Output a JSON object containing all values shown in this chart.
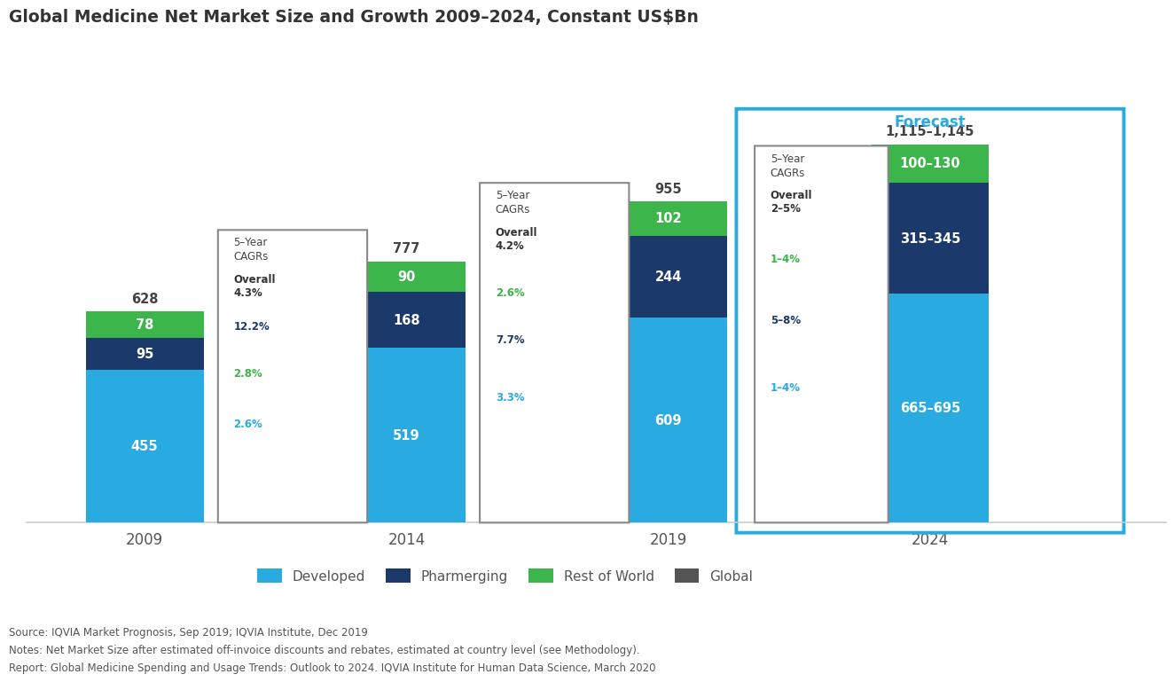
{
  "title": "Global Medicine Net Market Size and Growth 2009–2024, Constant US$Bn",
  "years": [
    "2009",
    "2014",
    "2019",
    "2024"
  ],
  "x_positions": [
    0,
    1,
    2,
    3
  ],
  "developed": [
    455,
    519,
    609,
    680
  ],
  "pharmerging": [
    95,
    168,
    244,
    330
  ],
  "rest_of_world": [
    78,
    90,
    102,
    115
  ],
  "totals": [
    "628",
    "777",
    "955",
    "1,115–1,145"
  ],
  "developed_labels": [
    "455",
    "519",
    "609",
    "665–695"
  ],
  "pharmerging_labels": [
    "95",
    "168",
    "244",
    "315–345"
  ],
  "row_labels": [
    "78",
    "90",
    "102",
    "100–130"
  ],
  "color_developed": "#29ABE2",
  "color_pharmerging": "#1B3A6B",
  "color_row": "#3CB54A",
  "color_forecast_border": "#29ABE2",
  "color_cagr_box_border": "#777777",
  "bar_width": 0.45,
  "legend_labels": [
    "Developed",
    "Pharmerging",
    "Rest of World",
    "Global"
  ],
  "legend_colors": [
    "#29ABE2",
    "#1B3A6B",
    "#3CB54A",
    "#555555"
  ],
  "source_text": "Source: IQVIA Market Prognosis, Sep 2019; IQVIA Institute, Dec 2019\nNotes: Net Market Size after estimated off-invoice discounts and rebates, estimated at country level (see Methodology).\nReport: Global Medicine Spending and Usage Trends: Outlook to 2024. IQVIA Institute for Human Data Science, March 2020",
  "forecast_label": "Forecast",
  "ylim": [
    0,
    1350
  ]
}
